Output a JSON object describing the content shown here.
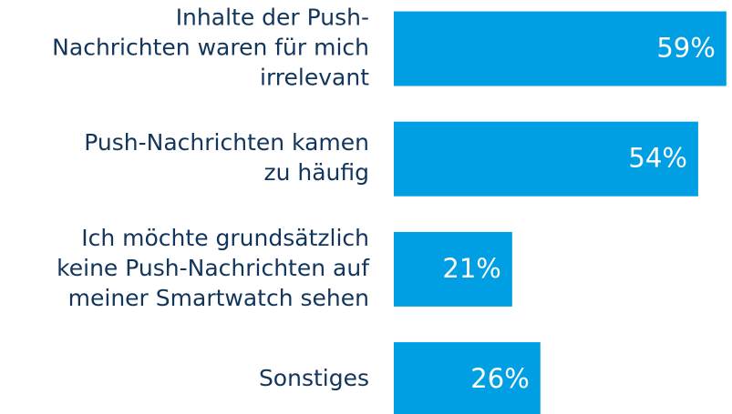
{
  "chart_data": {
    "type": "barh",
    "categories": [
      [
        "Inhalte der Push-",
        "Nachrichten waren für mich",
        "irrelevant"
      ],
      [
        "Push-Nachrichten kamen",
        "zu häufig"
      ],
      [
        "Ich möchte grundsätzlich",
        "keine Push-Nachrichten auf",
        "meiner Smartwatch sehen"
      ],
      [
        "Sonstiges"
      ]
    ],
    "values": [
      59,
      54,
      21,
      26
    ],
    "value_labels": [
      "59%",
      "54%",
      "21%",
      "26%"
    ],
    "color": "#009fe3",
    "xlim": [
      0,
      60
    ]
  }
}
